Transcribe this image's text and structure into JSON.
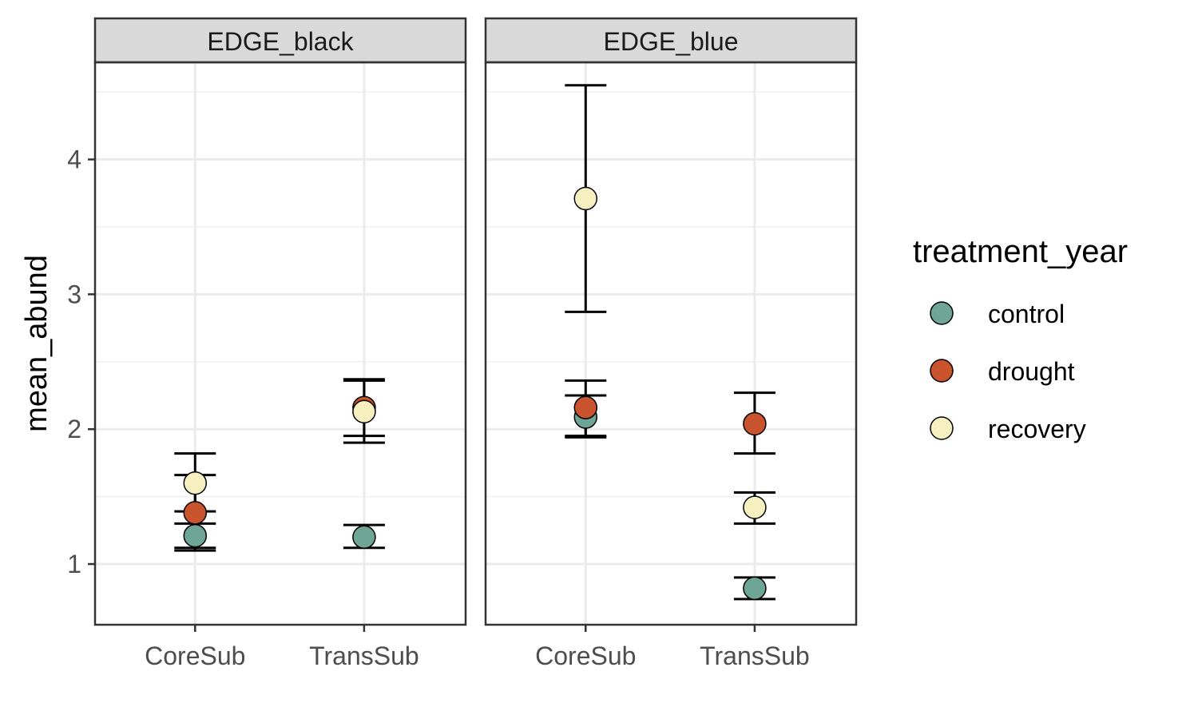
{
  "chart_data": {
    "type": "scatter",
    "ylabel": "mean_abund",
    "xlabel": "",
    "ylim": [
      0.55,
      4.72
    ],
    "yticks": [
      1,
      2,
      3,
      4
    ],
    "categories": [
      "CoreSub",
      "TransSub"
    ],
    "grid": true,
    "legend": {
      "title": "treatment_year",
      "placement": "right",
      "entries": [
        {
          "name": "control",
          "color": "#6FA596"
        },
        {
          "name": "drought",
          "color": "#C8532C"
        },
        {
          "name": "recovery",
          "color": "#F6EFC0"
        }
      ]
    },
    "panels": [
      {
        "title": "EDGE_black",
        "points": [
          {
            "category": "CoreSub",
            "group": "control",
            "mean": 1.21,
            "lower": 1.12,
            "upper": 1.3
          },
          {
            "category": "CoreSub",
            "group": "drought",
            "mean": 1.38,
            "lower": 1.1,
            "upper": 1.66
          },
          {
            "category": "CoreSub",
            "group": "recovery",
            "mean": 1.6,
            "lower": 1.39,
            "upper": 1.82
          },
          {
            "category": "TransSub",
            "group": "control",
            "mean": 1.2,
            "lower": 1.12,
            "upper": 1.29
          },
          {
            "category": "TransSub",
            "group": "drought",
            "mean": 2.16,
            "lower": 1.95,
            "upper": 2.37
          },
          {
            "category": "TransSub",
            "group": "recovery",
            "mean": 2.13,
            "lower": 1.9,
            "upper": 2.36
          }
        ]
      },
      {
        "title": "EDGE_blue",
        "points": [
          {
            "category": "CoreSub",
            "group": "control",
            "mean": 2.09,
            "lower": 1.94,
            "upper": 2.25
          },
          {
            "category": "CoreSub",
            "group": "drought",
            "mean": 2.16,
            "lower": 1.95,
            "upper": 2.36
          },
          {
            "category": "CoreSub",
            "group": "recovery",
            "mean": 3.71,
            "lower": 2.87,
            "upper": 4.55
          },
          {
            "category": "TransSub",
            "group": "control",
            "mean": 0.82,
            "lower": 0.74,
            "upper": 0.9
          },
          {
            "category": "TransSub",
            "group": "drought",
            "mean": 2.04,
            "lower": 1.82,
            "upper": 2.27
          },
          {
            "category": "TransSub",
            "group": "recovery",
            "mean": 1.42,
            "lower": 1.3,
            "upper": 1.53
          }
        ]
      }
    ]
  }
}
